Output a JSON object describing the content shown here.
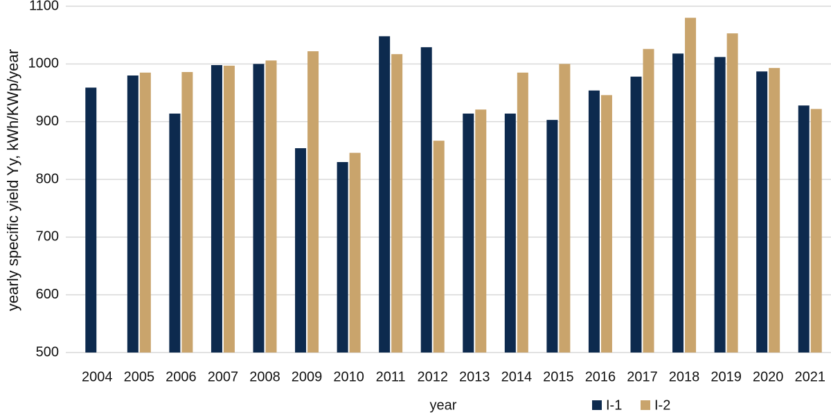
{
  "chart_data": {
    "type": "bar",
    "x_label": "year",
    "y_label": "yearly specific yield Yy, kWh/KWp/year",
    "categories": [
      "2004",
      "2005",
      "2006",
      "2007",
      "2008",
      "2009",
      "2010",
      "2011",
      "2012",
      "2013",
      "2014",
      "2015",
      "2016",
      "2017",
      "2018",
      "2019",
      "2020",
      "2021"
    ],
    "series": [
      {
        "name": "I-1",
        "color": "#0d2a4e",
        "values": [
          959,
          980,
          914,
          998,
          1000,
          854,
          830,
          1048,
          1029,
          914,
          914,
          903,
          954,
          978,
          1018,
          1012,
          987,
          928
        ]
      },
      {
        "name": "I-2",
        "color": "#c9a46c",
        "values": [
          null,
          985,
          986,
          997,
          1006,
          1022,
          846,
          1017,
          867,
          921,
          985,
          1000,
          946,
          1026,
          1080,
          1053,
          993,
          922
        ]
      }
    ],
    "ylim": [
      500,
      1100
    ],
    "yticks": [
      500,
      600,
      700,
      800,
      900,
      1000,
      1100
    ],
    "grid": true,
    "legend": "bottom"
  }
}
